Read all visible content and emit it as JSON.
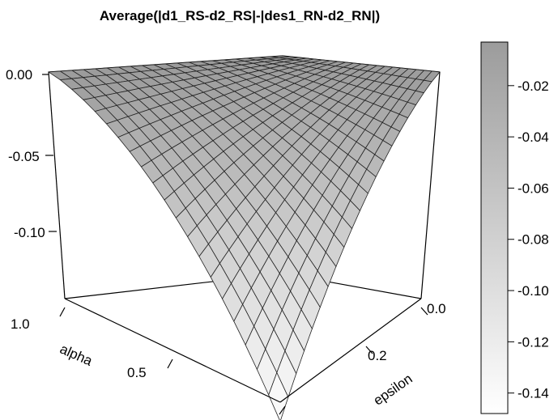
{
  "chart_data": {
    "type": "surface3d",
    "title": "Average(|d1_RS-d2_RS|-|des1_RN-d2_RN|)",
    "x_axis": {
      "label": "epsilon",
      "range": [
        0.0,
        0.3
      ],
      "ticks": [
        "0.0",
        "0.2"
      ]
    },
    "y_axis": {
      "label": "alpha",
      "range": [
        0.0,
        1.0
      ],
      "ticks": [
        "0.5",
        "1.0"
      ]
    },
    "z_axis": {
      "label": "",
      "range": [
        -0.145,
        0.0
      ],
      "ticks": [
        "0.00",
        "-0.05",
        "-0.10"
      ]
    },
    "surface": {
      "grid_size": 21,
      "description_values": {
        "z_at_epsilon_0": 0.0,
        "z_at_alpha_1": 0.0,
        "z_at_epsilon_0.3_alpha_0": -0.145
      }
    },
    "colorbar": {
      "ticks": [
        "-0.02",
        "-0.04",
        "-0.06",
        "-0.08",
        "-0.10",
        "-0.12",
        "-0.14"
      ],
      "range": [
        -0.148,
        -0.003
      ],
      "colors": {
        "low": "#ffffff",
        "high": "#9c9c9c"
      }
    },
    "colors": {
      "mesh": "#222222",
      "box": "#000000"
    }
  }
}
